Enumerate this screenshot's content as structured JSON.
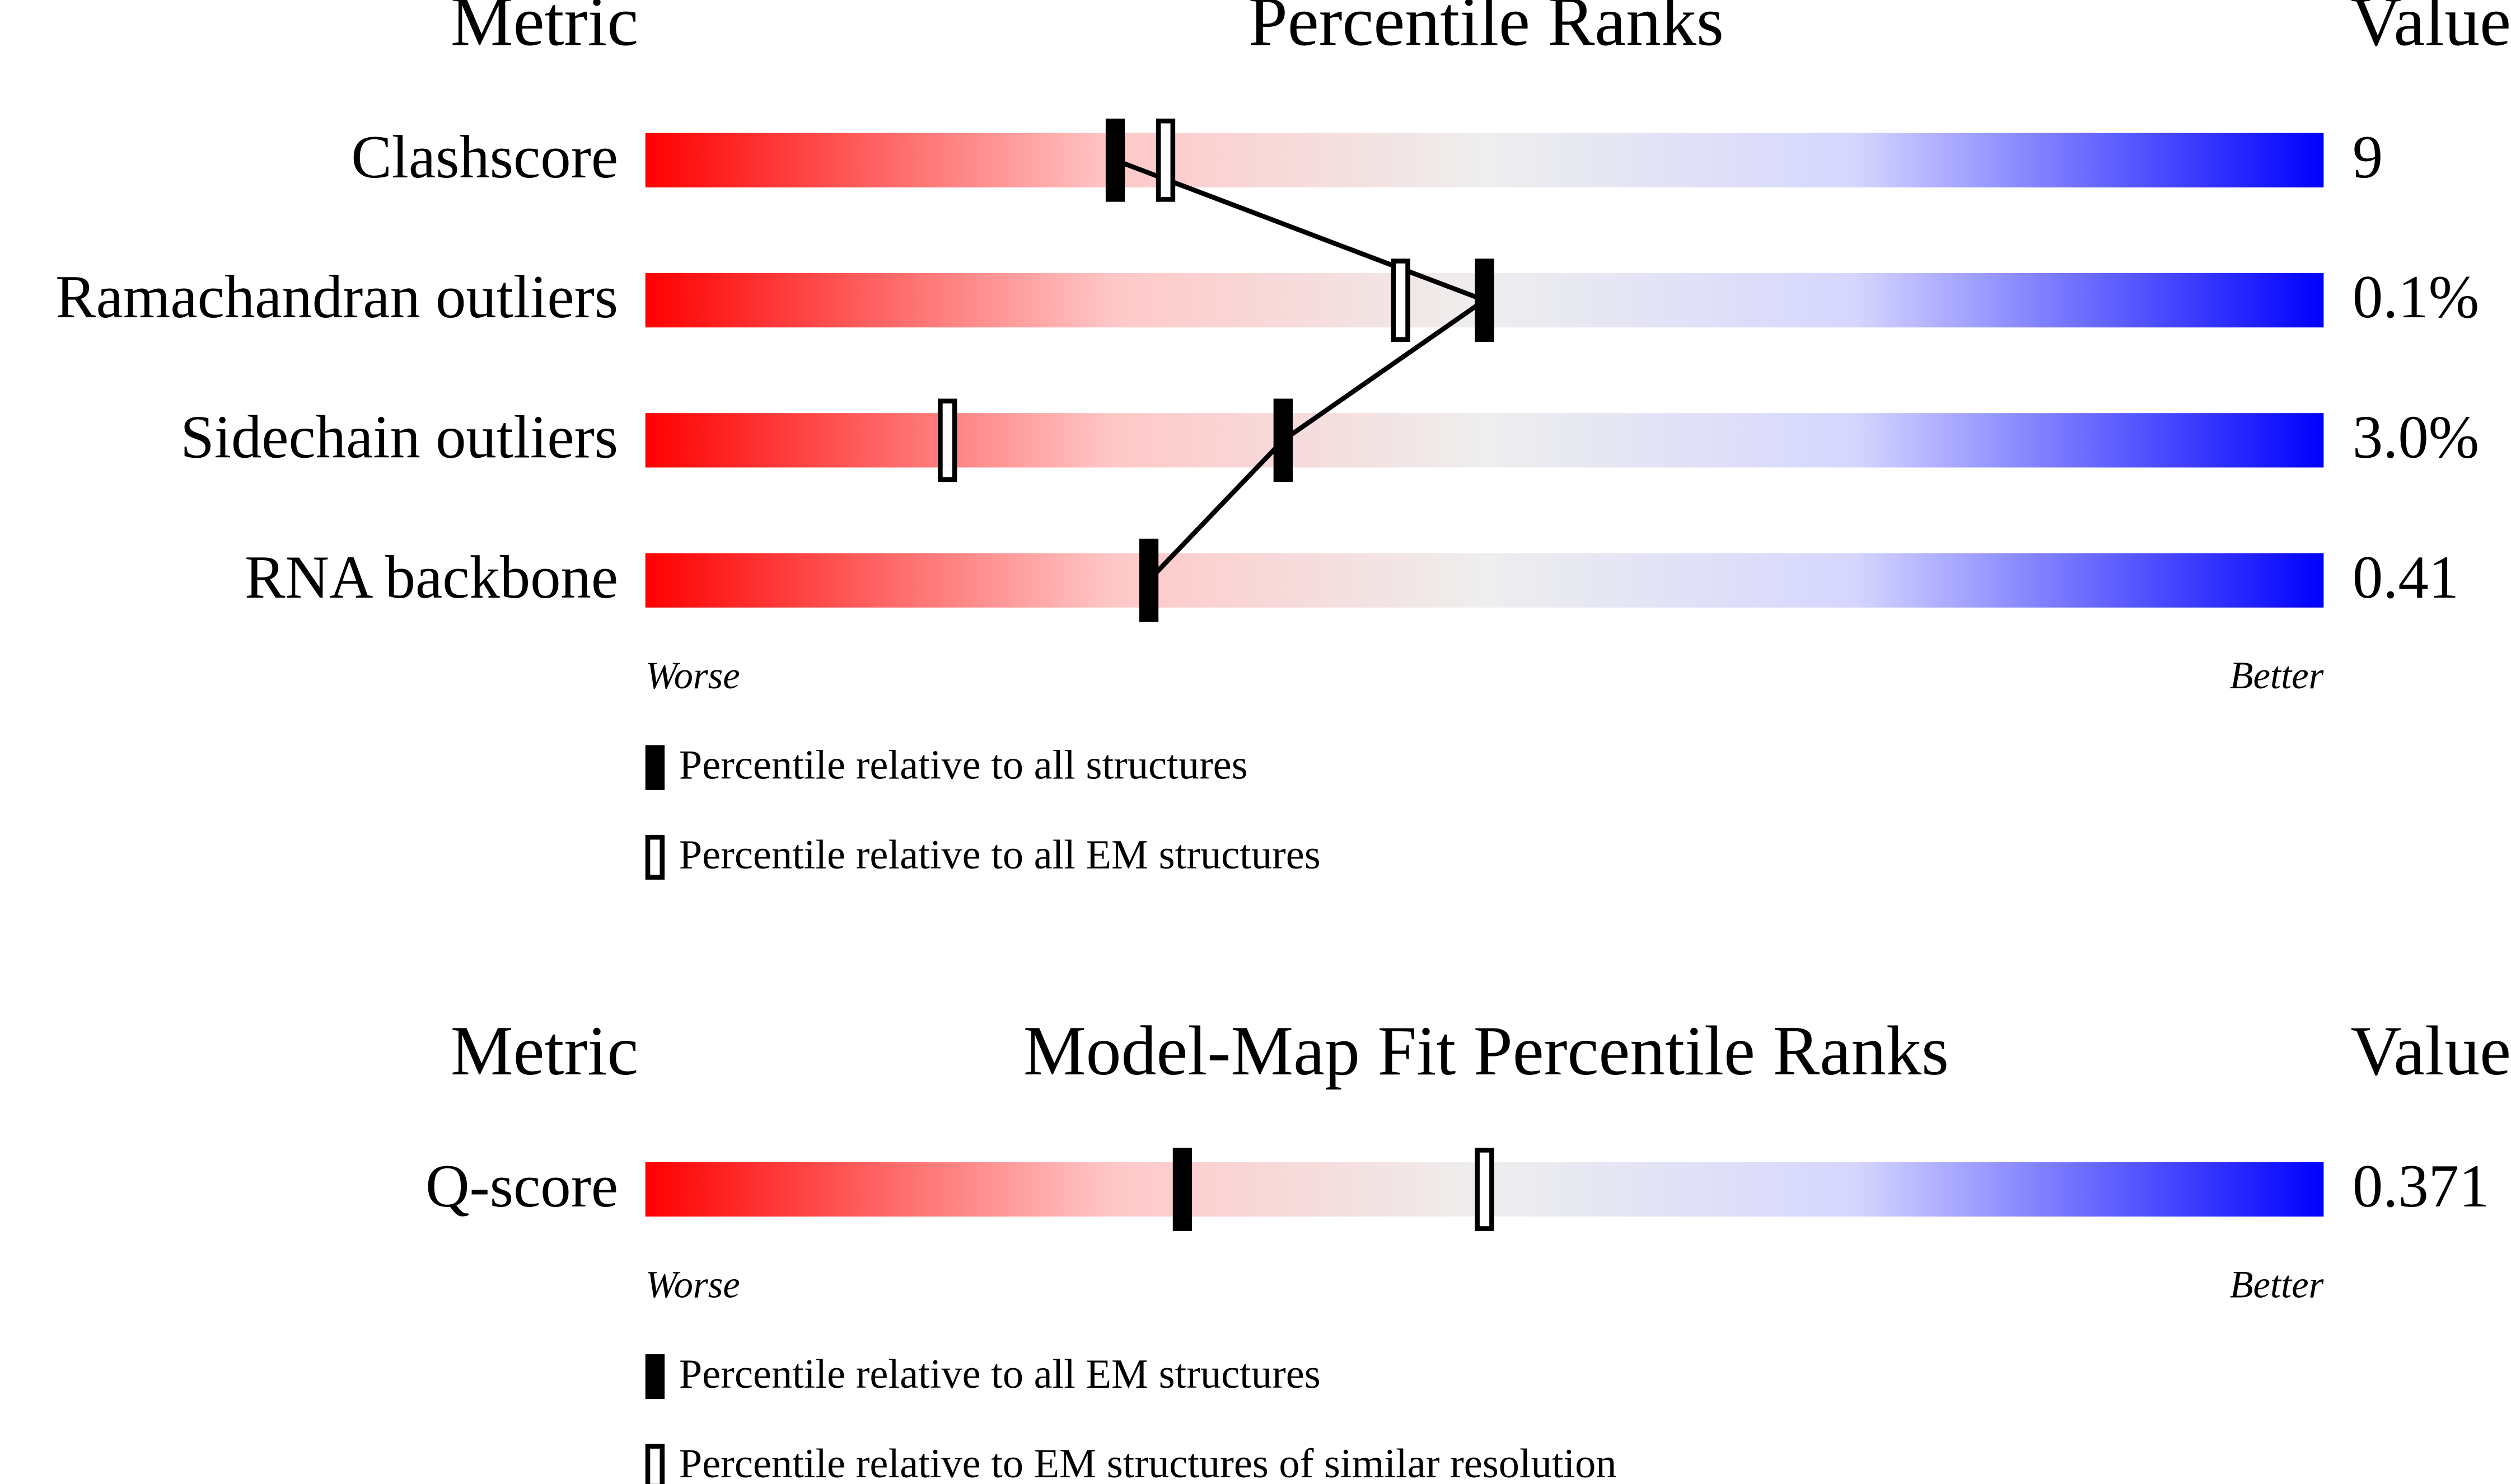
{
  "chart_data": [
    {
      "type": "percentile",
      "metric_header": "Metric",
      "title": "Percentile Ranks",
      "value_header": "Value",
      "categories": [
        "Clashscore",
        "Ramachandran outliers",
        "Sidechain outliers",
        "RNA backbone"
      ],
      "value_labels": [
        "9",
        "0.1%",
        "3.0%",
        "0.41"
      ],
      "series": [
        {
          "name": "Percentile relative to all structures",
          "style": "filled",
          "color": "#000000",
          "values": [
            28,
            50,
            38,
            30
          ]
        },
        {
          "name": "Percentile relative to all EM structures",
          "style": "open",
          "color": "#000000",
          "values": [
            31,
            45,
            18,
            null
          ]
        }
      ],
      "xlim": [
        0,
        100
      ],
      "worse_label": "Worse",
      "better_label": "Better"
    },
    {
      "type": "percentile",
      "metric_header": "Metric",
      "title": "Model-Map Fit Percentile Ranks",
      "value_header": "Value",
      "categories": [
        "Q-score"
      ],
      "value_labels": [
        "0.371"
      ],
      "series": [
        {
          "name": "Percentile relative to all EM structures",
          "style": "filled",
          "color": "#000000",
          "values": [
            32
          ]
        },
        {
          "name": "Percentile relative to EM structures of similar resolution",
          "style": "open",
          "color": "#000000",
          "values": [
            50
          ]
        }
      ],
      "xlim": [
        0,
        100
      ],
      "worse_label": "Worse",
      "better_label": "Better"
    }
  ]
}
